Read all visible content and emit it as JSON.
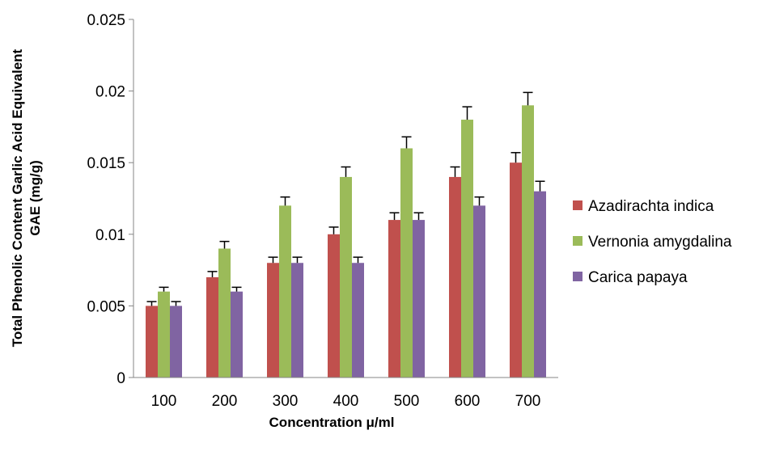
{
  "chart_data": {
    "type": "bar",
    "title": "",
    "xlabel": "Concentration μ/ml",
    "ylabel_lines": [
      "Total Phenolic Content Garlic Acid Equivalent",
      "GAE (mg/g)"
    ],
    "categories": [
      "100",
      "200",
      "300",
      "400",
      "500",
      "600",
      "700"
    ],
    "ylim": [
      0,
      0.025
    ],
    "yticks": [
      0,
      0.005,
      0.01,
      0.015,
      0.02,
      0.025
    ],
    "ytick_labels": [
      "0",
      "0.005",
      "0.01",
      "0.015",
      "0.02",
      "0.025"
    ],
    "grid": false,
    "legend_position": "right",
    "error_bars": true,
    "series": [
      {
        "name": "Azadirachta indica",
        "color": "#c0504d",
        "values": [
          0.005,
          0.007,
          0.008,
          0.01,
          0.011,
          0.014,
          0.015
        ],
        "errors": [
          0.0003,
          0.0004,
          0.0004,
          0.0005,
          0.0005,
          0.0007,
          0.0007
        ]
      },
      {
        "name": "Vernonia amygdalina",
        "color": "#9bbb59",
        "values": [
          0.006,
          0.009,
          0.012,
          0.014,
          0.016,
          0.018,
          0.019
        ],
        "errors": [
          0.0003,
          0.0005,
          0.0006,
          0.0007,
          0.0008,
          0.0009,
          0.0009
        ]
      },
      {
        "name": "Carica papaya",
        "color": "#8064a2",
        "values": [
          0.005,
          0.006,
          0.008,
          0.008,
          0.011,
          0.012,
          0.013
        ],
        "errors": [
          0.0003,
          0.0003,
          0.0004,
          0.0004,
          0.0005,
          0.0006,
          0.0007
        ]
      }
    ]
  }
}
